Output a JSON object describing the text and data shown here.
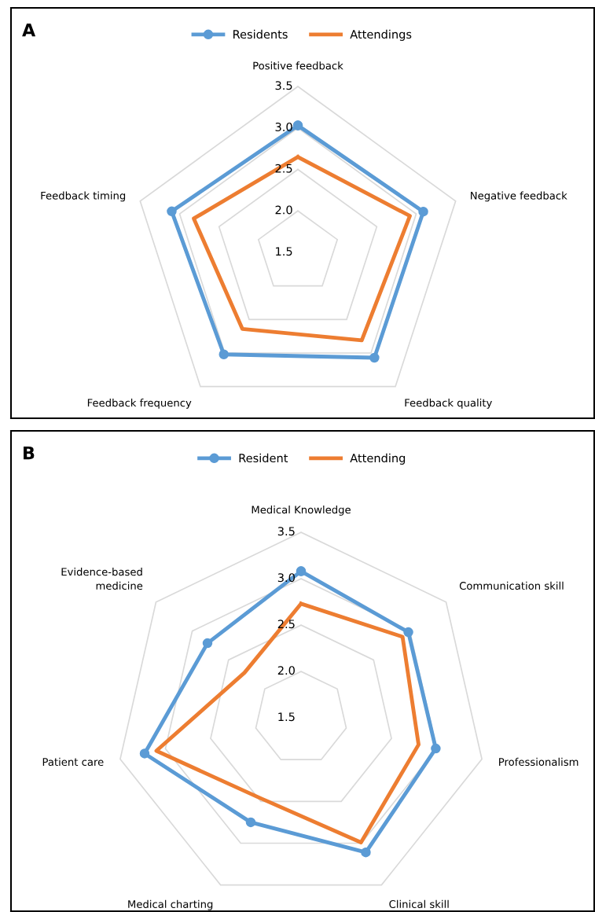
{
  "chart_data": [
    {
      "type": "radar",
      "title": "A",
      "categories": [
        "Positive feedback",
        "Negative feedback",
        "Feedback quality",
        "Feedback frequency",
        "Feedback timing"
      ],
      "ylim": [
        1.5,
        3.5
      ],
      "yticks": [
        {
          "value": 1.5,
          "label": "1.5"
        },
        {
          "value": 2.0,
          "label": "2.0"
        },
        {
          "value": 2.5,
          "label": "2.5"
        },
        {
          "value": 3.0,
          "label": "3.0"
        },
        {
          "value": 3.5,
          "label": "3.5"
        }
      ],
      "legend": "top",
      "grid": true,
      "series": [
        {
          "name": "Residents",
          "color": "#5b9bd5",
          "marker": "circle",
          "values": [
            3.03,
            3.09,
            3.07,
            3.02,
            3.1
          ]
        },
        {
          "name": "Attendings",
          "color": "#ed7d31",
          "marker": "none",
          "values": [
            2.65,
            2.92,
            2.81,
            2.64,
            2.82
          ]
        }
      ]
    },
    {
      "type": "radar",
      "title": "B",
      "categories": [
        "Medical Knowledge",
        "Communication skill",
        "Professionalism",
        "Clinical skill",
        "Medical charting",
        "Patient care",
        "Evidence-based\nmedicine"
      ],
      "ylim": [
        1.5,
        3.5
      ],
      "yticks": [
        {
          "value": 1.5,
          "label": "1.5"
        },
        {
          "value": 2.0,
          "label": "2.0"
        },
        {
          "value": 2.5,
          "label": "2.5"
        },
        {
          "value": 3.0,
          "label": "3.0"
        },
        {
          "value": 3.5,
          "label": "3.5"
        }
      ],
      "legend": "top",
      "grid": true,
      "series": [
        {
          "name": "Resident",
          "color": "#5b9bd5",
          "marker": "circle",
          "values": [
            3.08,
            2.98,
            2.99,
            3.11,
            2.75,
            3.23,
            2.79
          ]
        },
        {
          "name": "Attending",
          "color": "#ed7d31",
          "marker": "none",
          "values": [
            2.73,
            2.9,
            2.8,
            2.99,
            2.47,
            3.1,
            2.28
          ]
        }
      ]
    }
  ]
}
